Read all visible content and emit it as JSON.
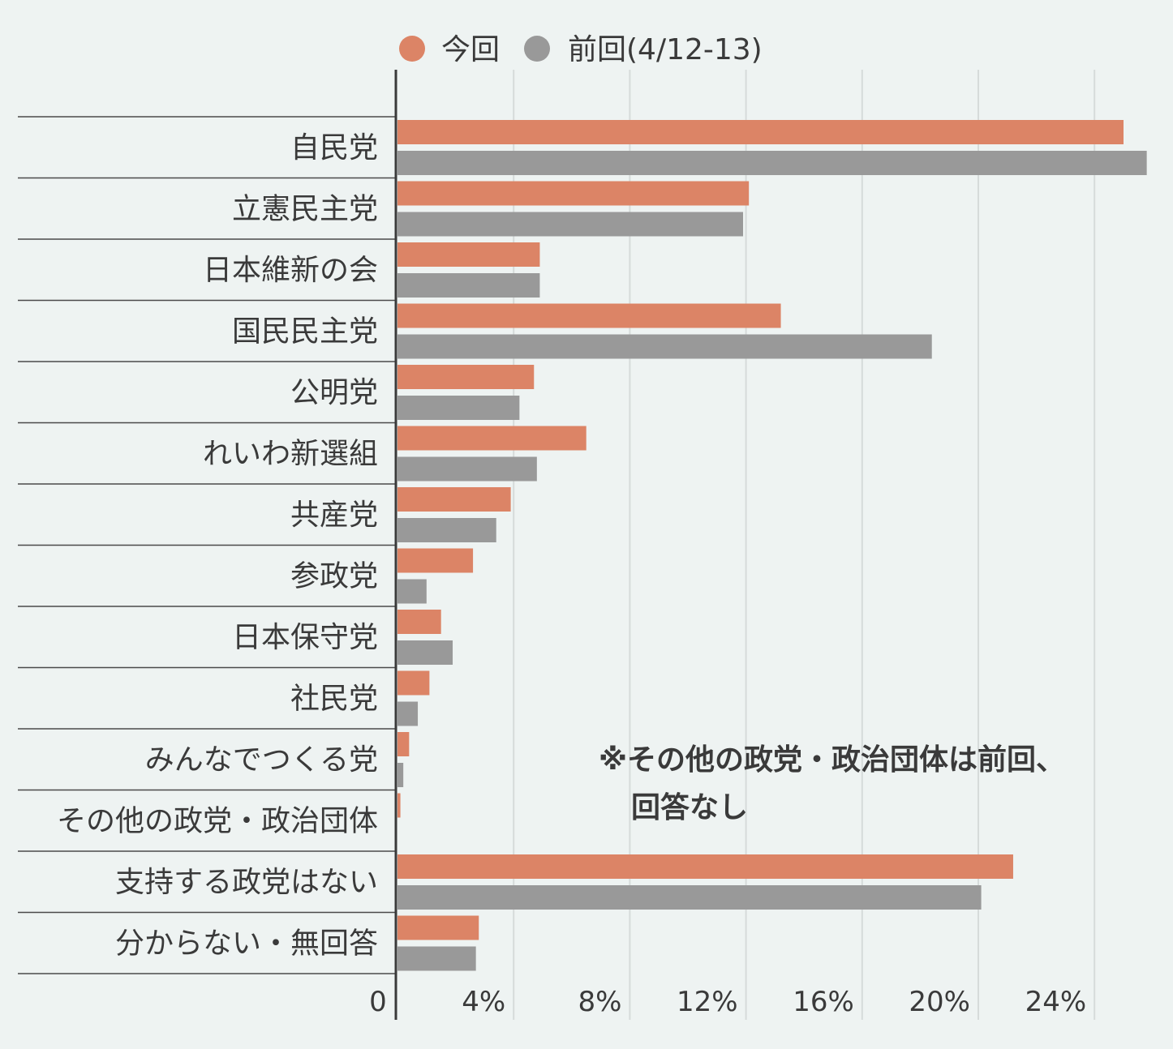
{
  "chart_data": {
    "type": "bar",
    "orientation": "horizontal",
    "categories": [
      "自民党",
      "立憲民主党",
      "日本維新の会",
      "国民民主党",
      "公明党",
      "れいわ新選組",
      "共産党",
      "参政党",
      "日本保守党",
      "社民党",
      "みんなでつくる党",
      "その他の政党・政治団体",
      "支持する政党はない",
      "分からない・無回答"
    ],
    "series": [
      {
        "name": "今回",
        "color": "#dc8466",
        "values": [
          25.0,
          12.1,
          4.9,
          13.2,
          4.7,
          6.5,
          3.9,
          2.6,
          1.5,
          1.1,
          0.4,
          0.1,
          21.2,
          2.8
        ]
      },
      {
        "name": "前回(4/12-13)",
        "color": "#999999",
        "values": [
          25.8,
          11.9,
          4.9,
          18.4,
          4.2,
          4.8,
          3.4,
          1.0,
          1.9,
          0.7,
          0.2,
          null,
          20.1,
          2.7
        ]
      }
    ],
    "x_ticks": [
      "0",
      "4%",
      "8%",
      "12%",
      "16%",
      "20%",
      "24%"
    ],
    "xlim": [
      0,
      26.2
    ],
    "grid": true,
    "legend_position": "top-center",
    "annotation": [
      "※その他の政党・政治団体は前回、",
      "回答なし"
    ]
  },
  "colors": {
    "background": "#eef3f2",
    "axis": "#3a3a3a",
    "grid": "#d6dbda",
    "separator": "#4a4a4a"
  }
}
